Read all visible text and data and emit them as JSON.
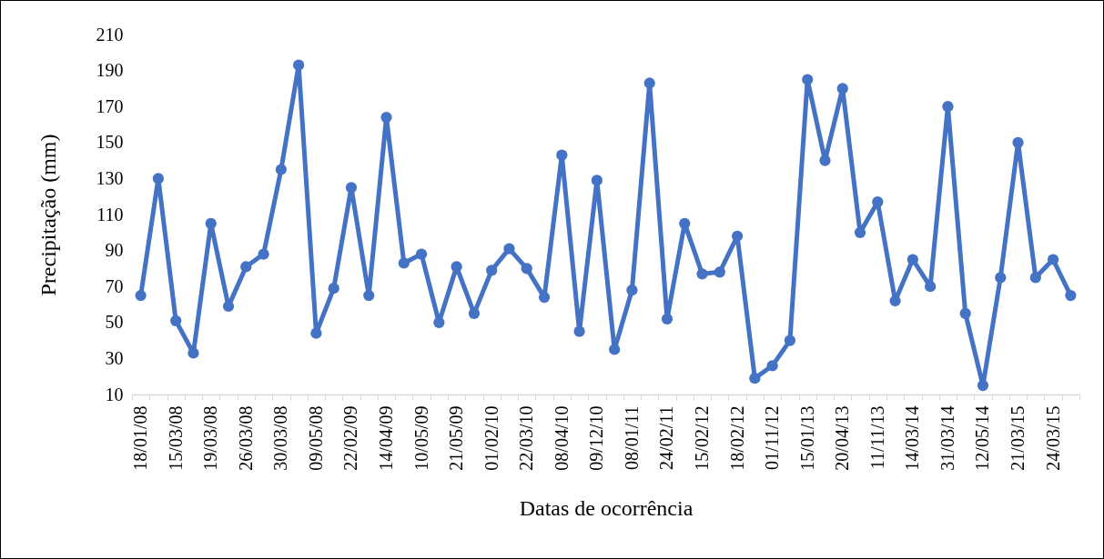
{
  "chart_data": {
    "type": "line",
    "xlabel": "Datas de ocorrência",
    "ylabel": "Precipitação (mm)",
    "categories": [
      "18/01/08",
      null,
      "15/03/08",
      null,
      "19/03/08",
      null,
      "26/03/08",
      null,
      "30/03/08",
      null,
      "09/05/08",
      null,
      "22/02/09",
      null,
      "14/04/09",
      null,
      "10/05/09",
      null,
      "21/05/09",
      null,
      "01/02/10",
      null,
      "22/03/10",
      null,
      "08/04/10",
      null,
      "09/12/10",
      null,
      "08/01/11",
      null,
      "24/02/11",
      null,
      "15/02/12",
      null,
      "18/02/12",
      null,
      "01/11/12",
      null,
      "15/01/13",
      null,
      "20/04/13",
      null,
      "11/11/13",
      null,
      "14/03/14",
      null,
      "31/03/14",
      null,
      "12/05/14",
      null,
      "21/03/15",
      null,
      "24/03/15",
      null
    ],
    "series": [
      {
        "color": "#4472c4",
        "values": [
          65,
          130,
          51,
          33,
          105,
          59,
          81,
          88,
          135,
          193,
          44,
          69,
          125,
          65,
          164,
          83,
          88,
          50,
          81,
          55,
          79,
          91,
          80,
          64,
          143,
          45,
          129,
          35,
          68,
          183,
          52,
          105,
          77,
          78,
          98,
          19,
          26,
          40,
          185,
          140,
          180,
          100,
          117,
          62,
          85,
          70,
          170,
          55,
          15,
          75,
          150,
          75,
          85,
          65
        ]
      }
    ],
    "ylim": [
      10,
      210
    ],
    "yticks": [
      10,
      30,
      50,
      70,
      90,
      110,
      130,
      150,
      170,
      190,
      210
    ],
    "marker": "circle",
    "line_style": "solid"
  }
}
